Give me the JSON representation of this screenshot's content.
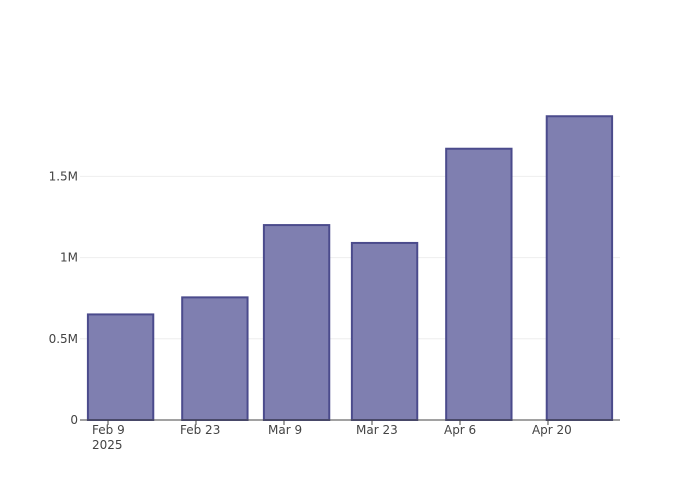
{
  "chart_data": {
    "type": "bar",
    "x": [
      "2025-02-11",
      "2025-02-26",
      "2025-03-11",
      "2025-03-25",
      "2025-04-09",
      "2025-04-25"
    ],
    "values": [
      650000,
      755000,
      1200000,
      1090000,
      1670000,
      1870000
    ],
    "color": "#7f7fb0",
    "edge_color": "#4b4b8c",
    "xlim": [
      "2025-02-04T13:00",
      "2025-05-01T11:00"
    ],
    "xticks": [
      {
        "value": "2025-02-09",
        "label": "Feb 9\n2025"
      },
      {
        "value": "2025-02-23",
        "label": "Feb 23"
      },
      {
        "value": "2025-03-09",
        "label": "Mar 9"
      },
      {
        "value": "2025-03-23",
        "label": "Mar 23"
      },
      {
        "value": "2025-04-06",
        "label": "Apr 6"
      },
      {
        "value": "2025-04-20",
        "label": "Apr 20"
      }
    ],
    "ylim": [
      0,
      1970000
    ],
    "yticks": [
      0,
      {
        "value": 500000,
        "label": "0.5M"
      },
      {
        "value": 1000000,
        "label": "1M"
      },
      {
        "value": 1500000,
        "label": "1.5M"
      }
    ],
    "grid": true
  }
}
